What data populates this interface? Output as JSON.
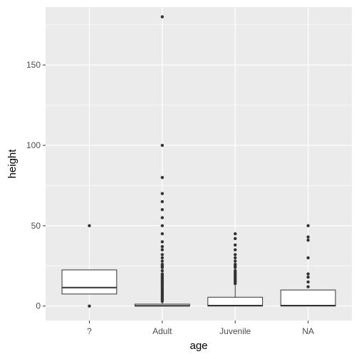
{
  "chart_data": {
    "type": "boxplot",
    "xlabel": "age",
    "ylabel": "height",
    "ylim": [
      -9,
      186
    ],
    "yticks": [
      0,
      50,
      100,
      150
    ],
    "grid": true,
    "categories": [
      "?",
      "Adult",
      "Juvenile",
      "NA"
    ],
    "boxes": [
      {
        "category": "?",
        "q1": 7.5,
        "median": 11.5,
        "q3": 22.5,
        "whisker_low": 7.5,
        "whisker_high": 22.5,
        "outliers": [
          0,
          50
        ]
      },
      {
        "category": "Adult",
        "q1": 0,
        "median": 0.2,
        "q3": 1.2,
        "whisker_low": 0,
        "whisker_high": 2.5,
        "outliers": [
          180,
          100,
          80,
          70,
          65,
          60,
          55,
          50,
          45,
          40,
          37,
          35,
          32,
          30,
          28,
          26,
          25,
          24,
          22,
          20,
          19,
          18,
          17,
          16,
          15,
          14,
          13,
          12,
          11,
          10,
          9,
          8,
          7,
          6,
          5,
          4,
          3
        ]
      },
      {
        "category": "Juvenile",
        "q1": 0,
        "median": 0.3,
        "q3": 5.5,
        "whisker_low": 0,
        "whisker_high": 13,
        "outliers": [
          45,
          42,
          38,
          35,
          32,
          30,
          28,
          26,
          25,
          24,
          22,
          21,
          20,
          19,
          18,
          17,
          16,
          15,
          14
        ]
      },
      {
        "category": "NA",
        "q1": 0,
        "median": 0.3,
        "q3": 10,
        "whisker_low": 0,
        "whisker_high": 10,
        "outliers": [
          50,
          43,
          41,
          30,
          20,
          18,
          15,
          12
        ]
      }
    ],
    "colors": {
      "panel": "#ebebeb",
      "grid_major": "#ffffff",
      "box_fill": "#ffffff",
      "box_stroke": "#333333",
      "point": "#333333"
    }
  }
}
